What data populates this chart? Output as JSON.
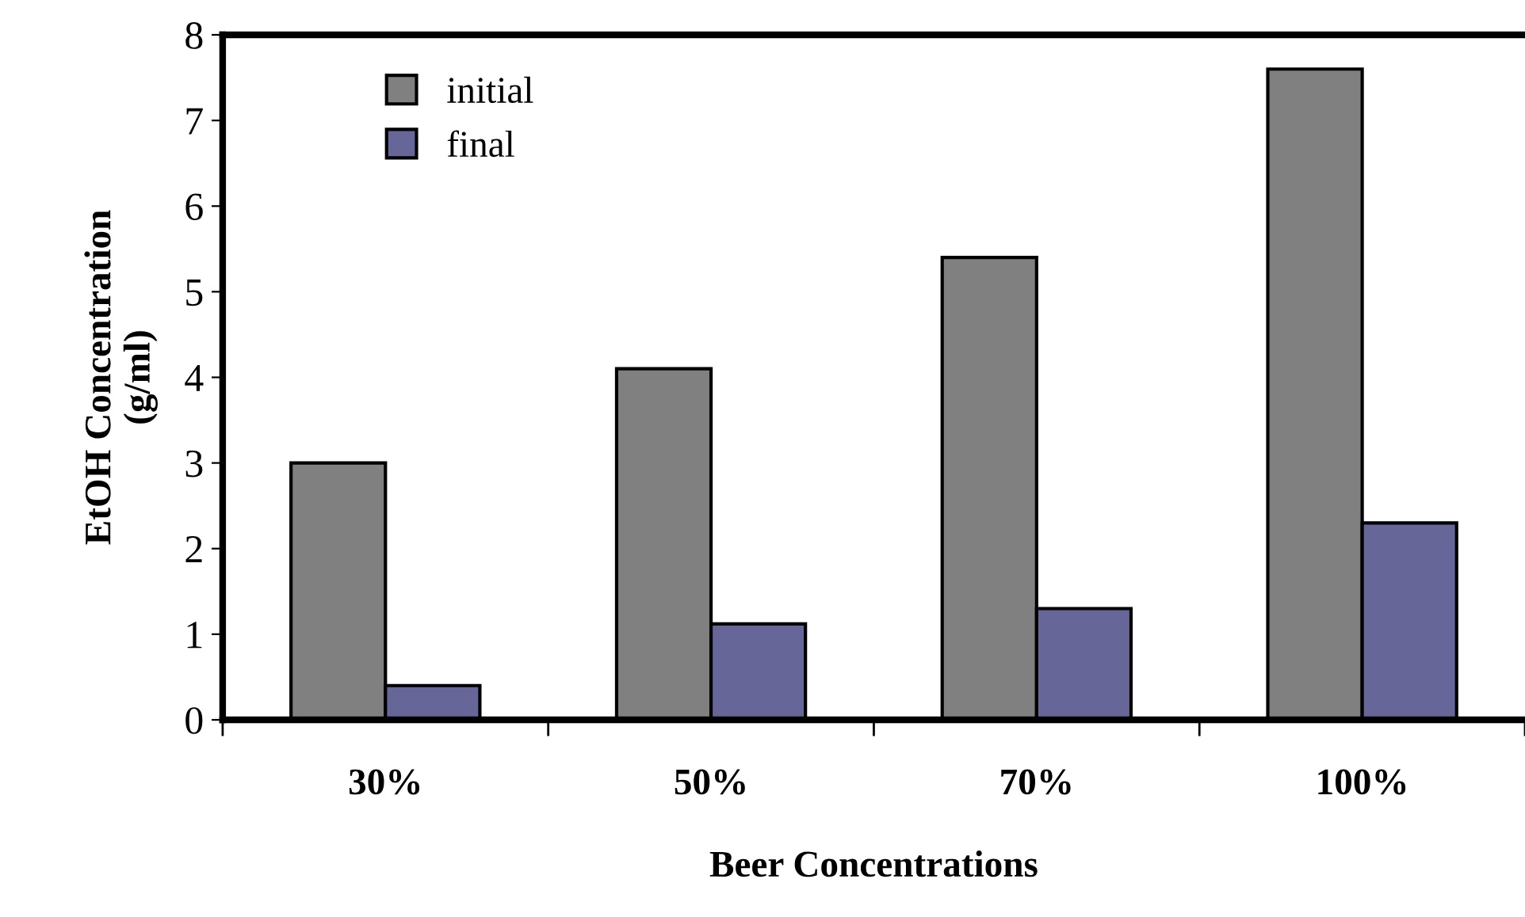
{
  "chart_data": {
    "type": "bar",
    "xlabel": "Beer Concentrations",
    "ylabel": "EtOH Concentration\n(g/ml)",
    "categories": [
      "30%",
      "50%",
      "70%",
      "100%"
    ],
    "series": [
      {
        "name": "initial",
        "color": "#808080",
        "values": [
          3.0,
          4.1,
          5.4,
          7.6
        ]
      },
      {
        "name": "final",
        "color": "#666699",
        "values": [
          0.4,
          1.12,
          1.3,
          2.3
        ]
      }
    ],
    "ylim": [
      0,
      8
    ],
    "yticks": [
      0,
      1,
      2,
      3,
      4,
      5,
      6,
      7,
      8
    ],
    "grid": false,
    "legend": "top left"
  }
}
